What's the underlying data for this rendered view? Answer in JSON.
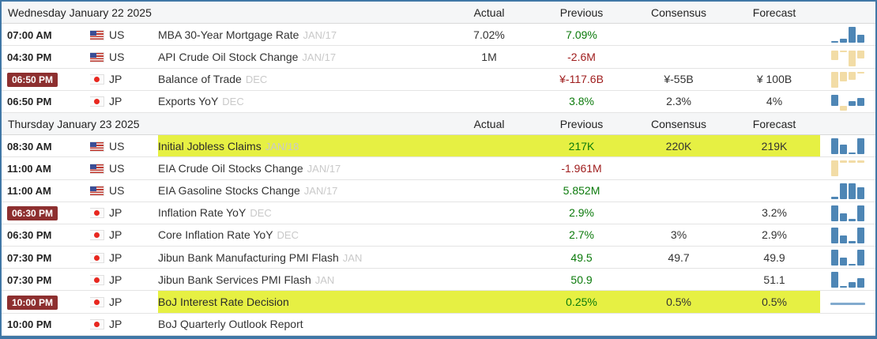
{
  "columns": {
    "actual": "Actual",
    "previous": "Previous",
    "consensus": "Consensus",
    "forecast": "Forecast"
  },
  "days": [
    {
      "date": "Wednesday January 22 2025",
      "rows": [
        {
          "time": "07:00 AM",
          "tstyle": "plain",
          "flag": "us",
          "country": "US",
          "event": "MBA 30-Year Mortgage Rate",
          "ref": "JAN/17",
          "hl": "",
          "actual": "7.02%",
          "actual_c": "black",
          "previous": "7.09%",
          "previous_c": "green",
          "consensus": "",
          "consensus_c": "",
          "forecast": "",
          "forecast_c": "",
          "spark": [
            1,
            2,
            8,
            4
          ]
        },
        {
          "time": "04:30 PM",
          "tstyle": "plain",
          "flag": "us",
          "country": "US",
          "event": "API Crude Oil Stock Change",
          "ref": "JAN/17",
          "hl": "",
          "actual": "1M",
          "actual_c": "black",
          "previous": "-2.6M",
          "previous_c": "red",
          "consensus": "",
          "consensus_c": "",
          "forecast": "",
          "forecast_c": "",
          "spark": [
            -5,
            -1,
            -8,
            -4
          ]
        },
        {
          "time": "06:50 PM",
          "tstyle": "alert",
          "flag": "jp",
          "country": "JP",
          "event": "Balance of Trade",
          "ref": "DEC",
          "hl": "",
          "actual": "",
          "actual_c": "",
          "previous": "¥-117.6B",
          "previous_c": "red",
          "consensus": "¥-55B",
          "consensus_c": "black",
          "forecast": "¥ 100B",
          "forecast_c": "black",
          "spark": [
            -8,
            -5,
            -4,
            -1
          ]
        },
        {
          "time": "06:50 PM",
          "tstyle": "plain",
          "flag": "jp",
          "country": "JP",
          "event": "Exports YoY",
          "ref": "DEC",
          "hl": "",
          "actual": "",
          "actual_c": "",
          "previous": "3.8%",
          "previous_c": "green",
          "consensus": "2.3%",
          "consensus_c": "black",
          "forecast": "4%",
          "forecast_c": "black",
          "spark": [
            7,
            -3,
            3,
            5
          ]
        }
      ]
    },
    {
      "date": "Thursday January 23 2025",
      "rows": [
        {
          "time": "08:30 AM",
          "tstyle": "plain",
          "flag": "us",
          "country": "US",
          "event": "Initial Jobless Claims",
          "ref": "JAN/18",
          "hl": "hl",
          "actual": "",
          "actual_c": "",
          "previous": "217K",
          "previous_c": "green",
          "consensus": "220K",
          "consensus_c": "black",
          "forecast": "219K",
          "forecast_c": "black",
          "spark": [
            8,
            5,
            1,
            8
          ]
        },
        {
          "time": "11:00 AM",
          "tstyle": "plain",
          "flag": "us",
          "country": "US",
          "event": "EIA Crude Oil Stocks Change",
          "ref": "JAN/17",
          "hl": "",
          "actual": "",
          "actual_c": "",
          "previous": "-1.961M",
          "previous_c": "red",
          "consensus": "",
          "consensus_c": "",
          "forecast": "",
          "forecast_c": "",
          "spark": [
            -8,
            -1,
            -1,
            -1
          ]
        },
        {
          "time": "11:00 AM",
          "tstyle": "plain",
          "flag": "us",
          "country": "US",
          "event": "EIA Gasoline Stocks Change",
          "ref": "JAN/17",
          "hl": "",
          "actual": "",
          "actual_c": "",
          "previous": "5.852M",
          "previous_c": "green",
          "consensus": "",
          "consensus_c": "",
          "forecast": "",
          "forecast_c": "",
          "spark": [
            1,
            8,
            8,
            6
          ]
        },
        {
          "time": "06:30 PM",
          "tstyle": "alert",
          "flag": "jp",
          "country": "JP",
          "event": "Inflation Rate YoY",
          "ref": "DEC",
          "hl": "",
          "actual": "",
          "actual_c": "",
          "previous": "2.9%",
          "previous_c": "green",
          "consensus": "",
          "consensus_c": "",
          "forecast": "3.2%",
          "forecast_c": "black",
          "spark": [
            8,
            4,
            1,
            8
          ]
        },
        {
          "time": "06:30 PM",
          "tstyle": "plain",
          "flag": "jp",
          "country": "JP",
          "event": "Core Inflation Rate YoY",
          "ref": "DEC",
          "hl": "",
          "actual": "",
          "actual_c": "",
          "previous": "2.7%",
          "previous_c": "green",
          "consensus": "3%",
          "consensus_c": "black",
          "forecast": "2.9%",
          "forecast_c": "black",
          "spark": [
            8,
            4,
            1,
            8
          ]
        },
        {
          "time": "07:30 PM",
          "tstyle": "plain",
          "flag": "jp",
          "country": "JP",
          "event": "Jibun Bank Manufacturing PMI Flash",
          "ref": "JAN",
          "hl": "",
          "actual": "",
          "actual_c": "",
          "previous": "49.5",
          "previous_c": "green",
          "consensus": "49.7",
          "consensus_c": "black",
          "forecast": "49.9",
          "forecast_c": "black",
          "spark": [
            8,
            4,
            1,
            8
          ]
        },
        {
          "time": "07:30 PM",
          "tstyle": "plain",
          "flag": "jp",
          "country": "JP",
          "event": "Jibun Bank Services PMI Flash",
          "ref": "JAN",
          "hl": "",
          "actual": "",
          "actual_c": "",
          "previous": "50.9",
          "previous_c": "green",
          "consensus": "",
          "consensus_c": "",
          "forecast": "51.1",
          "forecast_c": "black",
          "spark": [
            8,
            1,
            3,
            5
          ]
        },
        {
          "time": "10:00 PM",
          "tstyle": "alert",
          "flag": "jp",
          "country": "JP",
          "event": "BoJ Interest Rate Decision",
          "ref": "",
          "hl": "hl",
          "actual": "",
          "actual_c": "",
          "previous": "0.25%",
          "previous_c": "green",
          "consensus": "0.5%",
          "consensus_c": "black",
          "forecast": "0.5%",
          "forecast_c": "black",
          "spark": [
            0,
            0,
            0,
            0
          ]
        },
        {
          "time": "10:00 PM",
          "tstyle": "plain",
          "flag": "jp",
          "country": "JP",
          "event": "BoJ Quarterly Outlook Report",
          "ref": "",
          "hl": "",
          "actual": "",
          "actual_c": "",
          "previous": "",
          "previous_c": "",
          "consensus": "",
          "consensus_c": "",
          "forecast": "",
          "forecast_c": "",
          "spark": []
        }
      ]
    }
  ],
  "colors": {
    "frame_border": "#4077a6",
    "day_header_bg": "#f5f6f7",
    "highlight": "#e6f043",
    "value_green": "#0b7a0b",
    "value_red": "#9e1b1b",
    "alert_badge_bg": "#8d2f2f",
    "spark_positive": "#4e86b5",
    "spark_negative": "#f2dca6"
  }
}
